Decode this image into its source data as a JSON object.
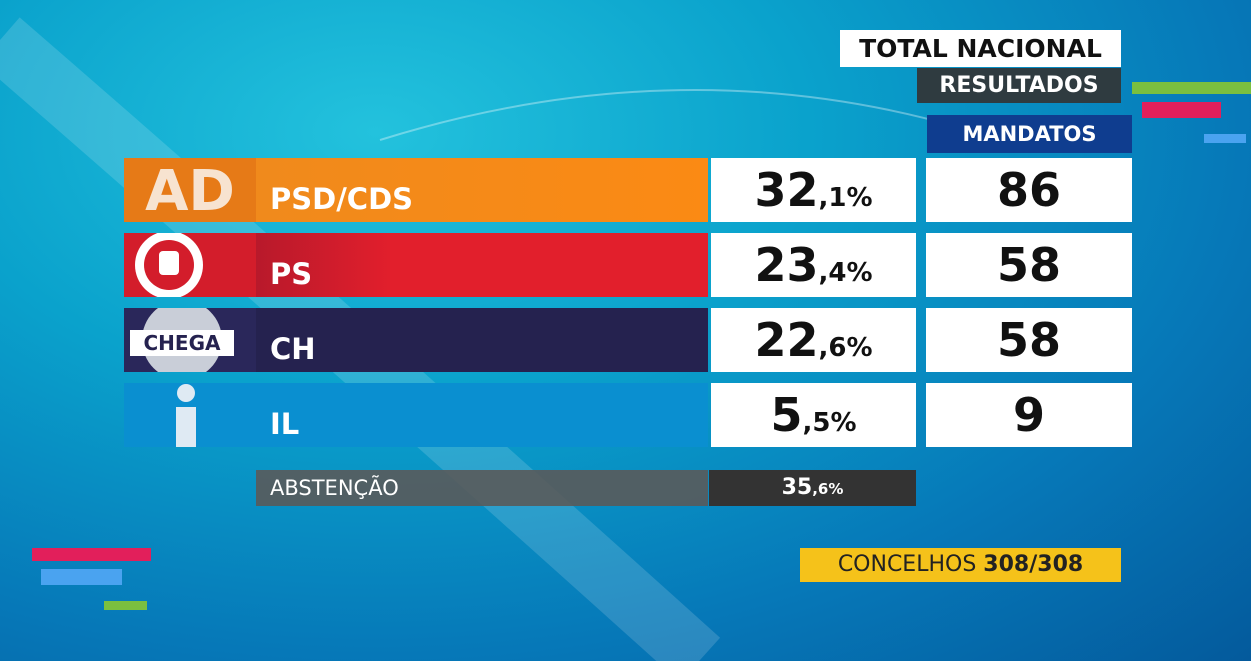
{
  "header": {
    "title": "TOTAL NACIONAL",
    "subtitle": "RESULTADOS",
    "seats_header": "MANDATOS"
  },
  "rows": [
    {
      "logo": "AD",
      "party": "PSD/CDS",
      "percent": "32,1%",
      "seats": "86"
    },
    {
      "party": "PS",
      "percent": "23,4%",
      "seats": "58"
    },
    {
      "logo": "CHEGA",
      "party": "CH",
      "percent": "22,6%",
      "seats": "58"
    },
    {
      "party": "IL",
      "percent": "5,5%",
      "seats": "9"
    }
  ],
  "abstention": {
    "label": "ABSTENÇÃO",
    "percent": "35,6%"
  },
  "footer": {
    "label": "CONCELHOS",
    "value": "308/308"
  }
}
